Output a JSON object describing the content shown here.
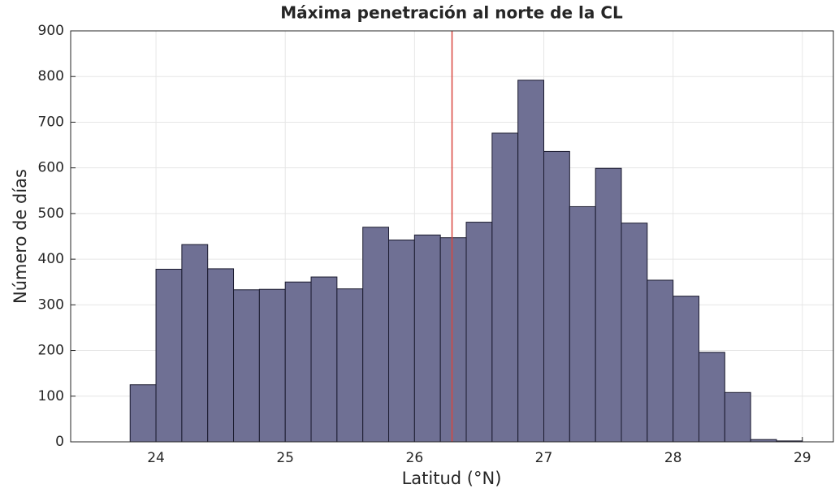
{
  "chart_data": {
    "type": "histogram",
    "title": "Máxima penetración al norte de la CL",
    "xlabel": "Latitud (°N)",
    "ylabel": "Número de días",
    "bins": [
      23.8,
      24.0,
      24.2,
      24.4,
      24.6,
      24.8,
      25.0,
      25.2,
      25.4,
      25.6,
      25.8,
      26.0,
      26.2,
      26.4,
      26.6,
      26.8,
      27.0,
      27.2,
      27.4,
      27.6,
      27.8,
      28.0,
      28.2,
      28.4,
      28.6,
      28.8,
      29.0
    ],
    "values": [
      125,
      378,
      432,
      379,
      333,
      334,
      350,
      361,
      335,
      470,
      442,
      453,
      447,
      481,
      676,
      792,
      636,
      515,
      599,
      479,
      354,
      319,
      196,
      108,
      5,
      2
    ],
    "color": "#6f7094",
    "edgecolor": "#1a1a2e",
    "reference_line": {
      "value": 26.29,
      "color": "#d9463f"
    },
    "xlim": [
      23.34,
      29.24
    ],
    "xticks": [
      24,
      25,
      26,
      27,
      28,
      29
    ],
    "ylim": [
      0,
      900
    ],
    "yticks": [
      0,
      100,
      200,
      300,
      400,
      500,
      600,
      700,
      800,
      900
    ],
    "grid": true
  }
}
